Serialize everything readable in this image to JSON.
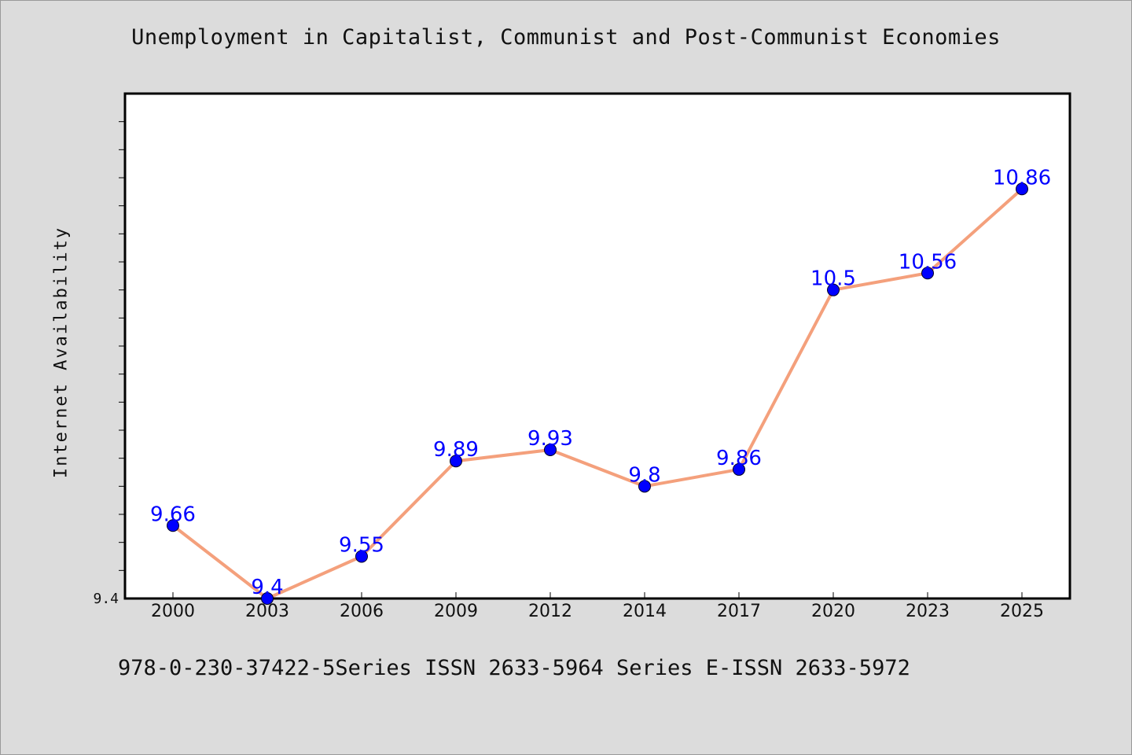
{
  "colors": {
    "background": "#dcdcdc",
    "plot_background": "#ffffff",
    "line": "#f4a07c",
    "marker": "#0000ff",
    "data_label": "#0000ff"
  },
  "footer": {
    "text": "978-0-230-37422-5Series ISSN 2633-5964 Series E-ISSN 2633-5972"
  },
  "chart_data": {
    "type": "line",
    "title": "Unemployment in Capitalist, Communist and Post-Communist Economies",
    "xlabel": "",
    "ylabel": "Internet Availability",
    "categories": [
      "2000",
      "2003",
      "2006",
      "2009",
      "2012",
      "2014",
      "2017",
      "2020",
      "2023",
      "2025"
    ],
    "series": [
      {
        "values": [
          9.66,
          9.4,
          9.55,
          9.89,
          9.93,
          9.8,
          9.86,
          10.5,
          10.56,
          10.86
        ]
      }
    ],
    "data_labels": [
      "9.66",
      "9.4",
      "9.55",
      "9.89",
      "9.93",
      "9.8",
      "9.86",
      "10.5",
      "10.56",
      "10.86"
    ],
    "y_tick_labels": [
      "9.4"
    ],
    "ylim": [
      9.4,
      11.2
    ],
    "grid": false,
    "legend": "none"
  }
}
